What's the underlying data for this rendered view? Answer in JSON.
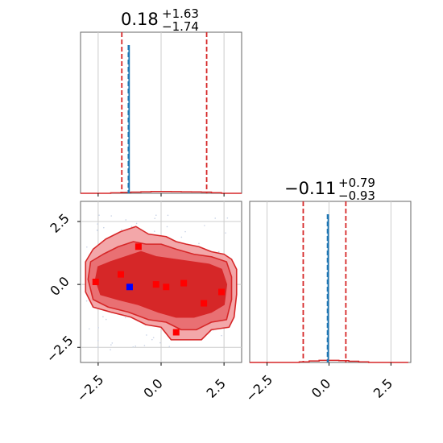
{
  "chart_data": [
    {
      "type": "histogram",
      "panel": "top-left marginal",
      "title": {
        "median": "0.18",
        "plus": "+1.63",
        "minus": "−1.74"
      },
      "x_range": [
        -3.2,
        3.2
      ],
      "x_ticks": [
        -2.5,
        0.0,
        2.5
      ],
      "grid": true,
      "histogram": {
        "bin_edges": [
          -3.2,
          -2.8,
          -2.4,
          -2.0,
          -1.6,
          -1.2,
          -0.8,
          -0.4,
          0.0,
          0.4,
          0.8,
          1.2,
          1.6,
          2.0,
          2.4,
          2.8,
          3.2
        ],
        "relative_heights": [
          0,
          0,
          0,
          0.003,
          0.006,
          0.008,
          0.01,
          0.012,
          0.012,
          0.011,
          0.01,
          0.009,
          0.008,
          0.004,
          0,
          0
        ]
      },
      "quantile_lines": [
        -1.56,
        1.81
      ],
      "truth_lines": [
        -1.27,
        -1.3
      ]
    },
    {
      "type": "histogram",
      "panel": "bottom-right marginal",
      "title": {
        "median": "−0.11",
        "plus": "+0.79",
        "minus": "−0.93"
      },
      "x_range": [
        -3.2,
        3.3
      ],
      "x_ticks": [
        -2.5,
        0.0,
        2.5
      ],
      "x_tick_labels": [
        "−2.5",
        "0.0",
        "2.5"
      ],
      "grid": true,
      "histogram": {
        "bin_edges": [
          -3.2,
          -2.8,
          -2.4,
          -2.0,
          -1.6,
          -1.2,
          -0.8,
          -0.4,
          0.0,
          0.4,
          0.8,
          1.2,
          1.6,
          2.0,
          2.4,
          2.8,
          3.2
        ],
        "relative_heights": [
          0,
          0,
          0,
          0,
          0,
          0.004,
          0.01,
          0.014,
          0.014,
          0.012,
          0.008,
          0.004,
          0,
          0,
          0,
          0
        ]
      },
      "quantile_lines": [
        -1.04,
        0.68
      ],
      "truth_lines": [
        -0.03,
        -0.06
      ]
    },
    {
      "type": "contour",
      "panel": "bottom-left joint",
      "x_range": [
        -3.2,
        3.2
      ],
      "y_range": [
        -3.1,
        3.3
      ],
      "x_ticks": [
        -2.5,
        0.0,
        2.5
      ],
      "x_tick_labels": [
        "−2.5",
        "0.0",
        "2.5"
      ],
      "y_ticks": [
        -2.5,
        0.0,
        2.5
      ],
      "y_tick_labels": [
        "−2.5",
        "0.0",
        "2.5"
      ],
      "grid": true,
      "contour_levels": [
        {
          "level": "outer",
          "fill": "#f3a7a9",
          "points": [
            [
              -3.0,
              0.9
            ],
            [
              -2.7,
              1.4
            ],
            [
              -2.2,
              1.8
            ],
            [
              -1.6,
              2.1
            ],
            [
              -1.0,
              2.3
            ],
            [
              -0.5,
              2.0
            ],
            [
              0.2,
              1.9
            ],
            [
              0.6,
              1.7
            ],
            [
              1.0,
              1.6
            ],
            [
              1.5,
              1.5
            ],
            [
              2.0,
              1.3
            ],
            [
              2.5,
              1.2
            ],
            [
              2.8,
              1.0
            ],
            [
              3.0,
              0.6
            ],
            [
              3.0,
              -0.4
            ],
            [
              2.9,
              -1.3
            ],
            [
              2.7,
              -1.7
            ],
            [
              2.0,
              -1.8
            ],
            [
              1.6,
              -2.2
            ],
            [
              1.0,
              -2.2
            ],
            [
              0.4,
              -2.2
            ],
            [
              0.0,
              -1.7
            ],
            [
              -0.6,
              -1.6
            ],
            [
              -1.2,
              -1.3
            ],
            [
              -2.0,
              -1.1
            ],
            [
              -2.7,
              -0.9
            ],
            [
              -3.0,
              -0.3
            ]
          ]
        },
        {
          "level": "middle",
          "fill": "#e97073",
          "points": [
            [
              -2.8,
              0.9
            ],
            [
              -2.3,
              1.2
            ],
            [
              -1.7,
              1.5
            ],
            [
              -1.1,
              1.7
            ],
            [
              -0.6,
              1.6
            ],
            [
              0.0,
              1.6
            ],
            [
              0.6,
              1.4
            ],
            [
              1.3,
              1.2
            ],
            [
              2.0,
              1.1
            ],
            [
              2.6,
              0.9
            ],
            [
              2.8,
              0.3
            ],
            [
              2.8,
              -0.6
            ],
            [
              2.6,
              -1.4
            ],
            [
              2.0,
              -1.5
            ],
            [
              1.4,
              -1.8
            ],
            [
              0.8,
              -1.8
            ],
            [
              0.2,
              -1.5
            ],
            [
              -0.5,
              -1.4
            ],
            [
              -1.3,
              -1.1
            ],
            [
              -2.1,
              -0.9
            ],
            [
              -2.7,
              -0.6
            ],
            [
              -2.9,
              0.2
            ]
          ]
        },
        {
          "level": "inner",
          "fill": "#d62728",
          "points": [
            [
              -2.5,
              0.7
            ],
            [
              -2.0,
              0.9
            ],
            [
              -1.4,
              1.1
            ],
            [
              -0.8,
              1.3
            ],
            [
              -0.2,
              1.1
            ],
            [
              0.5,
              1.0
            ],
            [
              1.2,
              0.9
            ],
            [
              1.9,
              0.8
            ],
            [
              2.4,
              0.6
            ],
            [
              2.6,
              0.0
            ],
            [
              2.5,
              -0.8
            ],
            [
              2.0,
              -1.1
            ],
            [
              1.3,
              -1.3
            ],
            [
              0.6,
              -1.3
            ],
            [
              -0.1,
              -1.1
            ],
            [
              -0.9,
              -0.8
            ],
            [
              -1.7,
              -0.6
            ],
            [
              -2.4,
              -0.4
            ],
            [
              -2.6,
              0.2
            ]
          ]
        }
      ],
      "markers": [
        {
          "x": -2.6,
          "y": 0.1,
          "color": "#ff0000"
        },
        {
          "x": -1.6,
          "y": 0.4,
          "color": "#ff0000"
        },
        {
          "x": -0.9,
          "y": 1.5,
          "color": "#ff0000"
        },
        {
          "x": -0.2,
          "y": 0.0,
          "color": "#ff0000"
        },
        {
          "x": 0.2,
          "y": -0.1,
          "color": "#ff0000"
        },
        {
          "x": 0.9,
          "y": 0.05,
          "color": "#ff0000"
        },
        {
          "x": 1.7,
          "y": -0.75,
          "color": "#ff0000"
        },
        {
          "x": 2.4,
          "y": -0.3,
          "color": "#ff0000"
        },
        {
          "x": 0.6,
          "y": -1.9,
          "color": "#ff0000"
        },
        {
          "x": -1.25,
          "y": -0.1,
          "color": "#0000ff"
        }
      ]
    }
  ]
}
